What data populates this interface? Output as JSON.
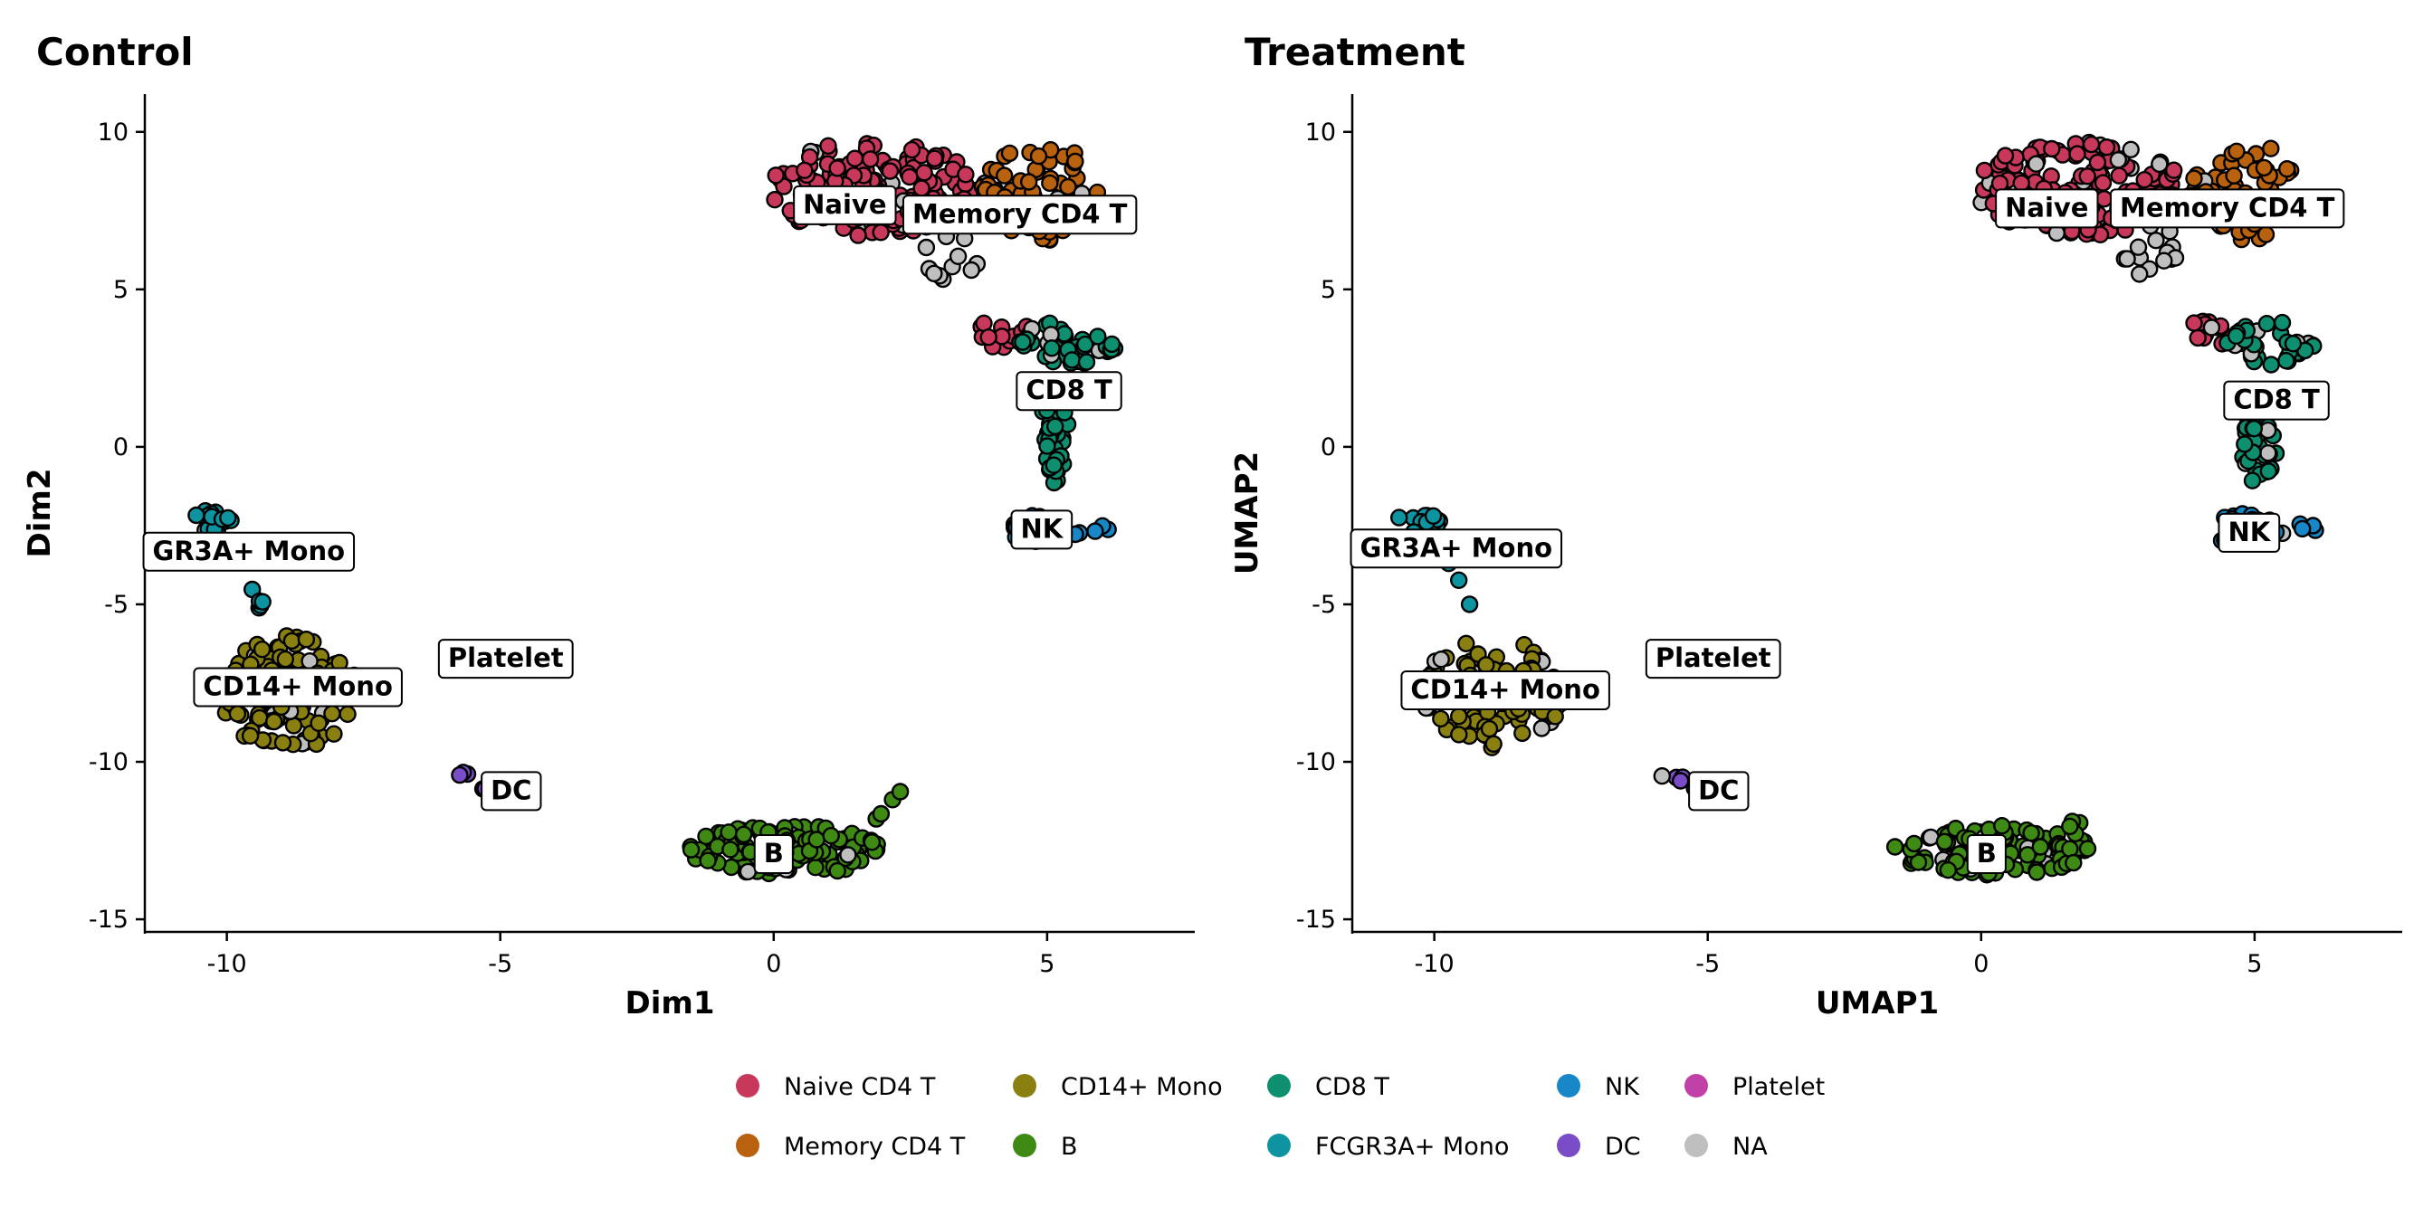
{
  "chart_data": {
    "type": "scatter",
    "point_style": "filled circles with black outline",
    "panels": [
      {
        "title": "Control",
        "xlabel": "Dim1",
        "ylabel": "Dim2",
        "xlim": [
          -11.5,
          7.7
        ],
        "ylim": [
          -15.4,
          11.2
        ],
        "xticks": [
          -10,
          -5,
          0,
          5
        ],
        "yticks": [
          -15,
          -10,
          -5,
          0,
          5,
          10
        ],
        "xtick_labels": [
          "-10",
          "-5",
          "0",
          "5"
        ],
        "ytick_labels": [
          "-15",
          "-10",
          "-5",
          "0",
          "5",
          "10"
        ],
        "cluster_labels": [
          {
            "text": "Naive",
            "x": 1.3,
            "y": 7.7
          },
          {
            "text": "Memory CD4 T",
            "x": 4.5,
            "y": 7.4
          },
          {
            "text": "CD8 T",
            "x": 5.4,
            "y": 1.8
          },
          {
            "text": "NK",
            "x": 4.9,
            "y": -2.6
          },
          {
            "text": "GR3A+ Mono",
            "x": -9.6,
            "y": -3.3
          },
          {
            "text": "CD14+ Mono",
            "x": -8.7,
            "y": -7.6
          },
          {
            "text": "Platelet",
            "x": -4.9,
            "y": -6.7
          },
          {
            "text": "DC",
            "x": -4.8,
            "y": -10.9
          },
          {
            "text": "B",
            "x": 0.0,
            "y": -12.9
          }
        ]
      },
      {
        "title": "Treatment",
        "xlabel": "UMAP1",
        "ylabel": "UMAP2",
        "xlim": [
          -11.5,
          7.7
        ],
        "ylim": [
          -15.4,
          11.2
        ],
        "xticks": [
          -10,
          -5,
          0,
          5
        ],
        "yticks": [
          -15,
          -10,
          -5,
          0,
          5,
          10
        ],
        "xtick_labels": [
          "-10",
          "-5",
          "0",
          "5"
        ],
        "ytick_labels": [
          "-15",
          "-10",
          "-5",
          "0",
          "5",
          "10"
        ],
        "cluster_labels": [
          {
            "text": "Naive",
            "x": 1.2,
            "y": 7.6
          },
          {
            "text": "Memory CD4 T",
            "x": 4.5,
            "y": 7.6
          },
          {
            "text": "CD8 T",
            "x": 5.4,
            "y": 1.5
          },
          {
            "text": "NK",
            "x": 4.9,
            "y": -2.7
          },
          {
            "text": "GR3A+ Mono",
            "x": -9.6,
            "y": -3.2
          },
          {
            "text": "CD14+ Mono",
            "x": -8.7,
            "y": -7.7
          },
          {
            "text": "Platelet",
            "x": -4.9,
            "y": -6.7
          },
          {
            "text": "DC",
            "x": -4.8,
            "y": -10.9
          },
          {
            "text": "B",
            "x": 0.1,
            "y": -12.9
          }
        ]
      }
    ],
    "legend": {
      "position": "bottom",
      "items": [
        {
          "name": "Naive CD4 T",
          "color": "#C8385A"
        },
        {
          "name": "Memory CD4 T",
          "color": "#B8610F"
        },
        {
          "name": "CD14+ Mono",
          "color": "#8A8012"
        },
        {
          "name": "B",
          "color": "#3E8A14"
        },
        {
          "name": "CD8 T",
          "color": "#0E9070"
        },
        {
          "name": "FCGR3A+ Mono",
          "color": "#0E93A1"
        },
        {
          "name": "NK",
          "color": "#1787C8"
        },
        {
          "name": "DC",
          "color": "#7A4CC8"
        },
        {
          "name": "Platelet",
          "color": "#C040A8"
        },
        {
          "name": "NA",
          "color": "#BFBFBF"
        }
      ]
    },
    "clusters": [
      {
        "type": "Naive CD4 T",
        "shape": "ellipse",
        "cx": 1.8,
        "cy": 8.2,
        "rx": 1.9,
        "ry": 1.5,
        "n": 150
      },
      {
        "type": "Naive CD4 T",
        "shape": "ellipse",
        "cx": 4.2,
        "cy": 3.6,
        "rx": 0.5,
        "ry": 0.5,
        "n": 14
      },
      {
        "type": "Memory CD4 T",
        "shape": "ellipse",
        "cx": 4.9,
        "cy": 8.0,
        "rx": 1.1,
        "ry": 1.6,
        "n": 70
      },
      {
        "type": "CD8 T",
        "shape": "ellipse",
        "cx": 5.4,
        "cy": 3.3,
        "rx": 0.9,
        "ry": 0.7,
        "n": 40
      },
      {
        "type": "CD8 T",
        "shape": "ellipse",
        "cx": 5.1,
        "cy": 0.1,
        "rx": 0.35,
        "ry": 1.3,
        "n": 35
      },
      {
        "type": "NK",
        "shape": "ellipse",
        "cx": 4.8,
        "cy": -2.6,
        "rx": 0.55,
        "ry": 0.55,
        "n": 30
      },
      {
        "type": "NK",
        "shape": "line",
        "x1": 5.2,
        "y1": -2.8,
        "x2": 6.2,
        "y2": -2.5,
        "n": 6
      },
      {
        "type": "FCGR3A+ Mono",
        "shape": "ellipse",
        "cx": -10.3,
        "cy": -2.4,
        "rx": 0.4,
        "ry": 0.4,
        "n": 16
      },
      {
        "type": "FCGR3A+ Mono",
        "shape": "line",
        "x1": -10.0,
        "y1": -3.0,
        "x2": -9.3,
        "y2": -5.2,
        "n": 8
      },
      {
        "type": "CD14+ Mono",
        "shape": "ellipse",
        "cx": -8.9,
        "cy": -7.8,
        "rx": 1.3,
        "ry": 1.8,
        "n": 120
      },
      {
        "type": "DC",
        "shape": "line",
        "x1": -5.8,
        "y1": -10.3,
        "x2": -5.2,
        "y2": -10.9,
        "n": 5
      },
      {
        "type": "B",
        "shape": "ellipse",
        "cx": 0.2,
        "cy": -12.8,
        "rx": 1.8,
        "ry": 0.8,
        "n": 120
      },
      {
        "type": "B",
        "shape": "line",
        "x1": 1.6,
        "y1": -12.3,
        "x2": 2.4,
        "y2": -10.8,
        "n": 4
      },
      {
        "type": "NA",
        "shape": "ellipse",
        "cx": 3.2,
        "cy": 6.2,
        "rx": 0.6,
        "ry": 0.9,
        "n": 14
      }
    ]
  }
}
